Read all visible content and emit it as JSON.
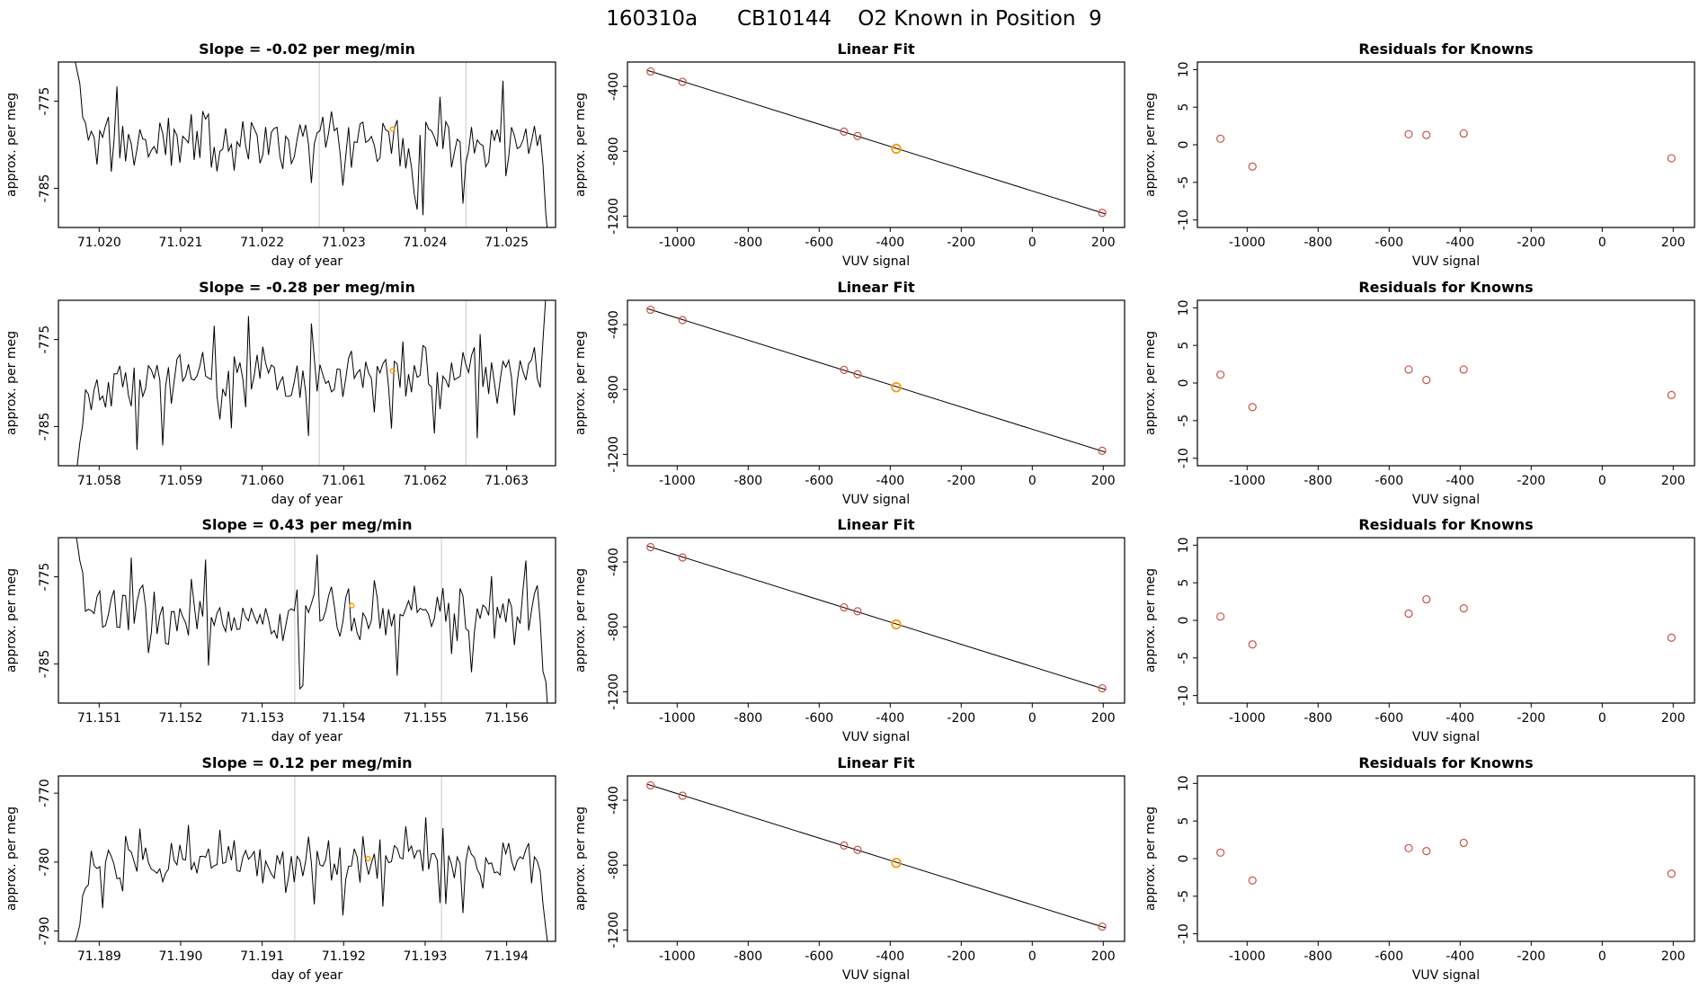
{
  "page_title": "160310a      CB10144    O2 Known in Position  9",
  "layout_hints": {
    "grid_rows": 4,
    "grid_cols": 3,
    "background": "#ffffff"
  },
  "colors": {
    "series_line": "#000000",
    "point_stroke": "#cc5149",
    "known_point_stroke": "#ff9900",
    "reference_line": "#c8c8c8",
    "axis": "#000000"
  },
  "chart_data": [
    {
      "panel": "row1-timeseries",
      "type": "line",
      "title": "Slope =  -0.02  per meg/min",
      "xlabel": "day of year",
      "ylabel": "approx. per meg",
      "xlim": [
        71.0195,
        71.0256
      ],
      "ylim": [
        -789.5,
        -770.5
      ],
      "xticks": [
        71.02,
        71.021,
        71.022,
        71.023,
        71.024,
        71.025
      ],
      "yticks": [
        -785,
        -775
      ],
      "xtick_decimals": 3,
      "ytick_decimals": 0,
      "ref_lines_x": [
        71.0227,
        71.0245
      ],
      "marker": {
        "x": 71.0236,
        "y": -778.2
      },
      "series_model": {
        "seed": 11,
        "n": 170,
        "mean": -779.5,
        "amp": 4,
        "enter": "top",
        "exit": "bottom"
      },
      "line_color": "#000000",
      "marker_color": "#ff9900",
      "ref_line_color": "#c8c8c8"
    },
    {
      "panel": "row1-linear-fit",
      "type": "scatter-line",
      "title": "Linear Fit",
      "xlabel": "VUV signal",
      "ylabel": "approx. per meg",
      "xlim": [
        -1140,
        260
      ],
      "ylim": [
        -1270,
        -250
      ],
      "xticks": [
        -1000,
        -800,
        -600,
        -400,
        -200,
        0,
        200
      ],
      "yticks": [
        -1200,
        -800,
        -400
      ],
      "xtick_decimals": 0,
      "ytick_decimals": 0,
      "fit_line": {
        "slope": -0.686,
        "intercept": -1045,
        "x_start": -1085,
        "x_end": 207
      },
      "points": [
        {
          "x": -1075,
          "y": -308
        },
        {
          "x": -985,
          "y": -372
        },
        {
          "x": -530,
          "y": -679
        },
        {
          "x": -492,
          "y": -706
        },
        {
          "x": 197,
          "y": -1180
        }
      ],
      "known_point": {
        "x": -383,
        "y": -785
      },
      "point_color": "#cc5149",
      "known_color": "#ff9900"
    },
    {
      "panel": "row1-residuals",
      "type": "scatter",
      "title": "Residuals for Knowns",
      "xlabel": "VUV signal",
      "ylabel": "approx. per meg",
      "xlim": [
        -1140,
        260
      ],
      "ylim": [
        -11,
        11
      ],
      "xticks": [
        -1000,
        -800,
        -600,
        -400,
        -200,
        0,
        200
      ],
      "yticks": [
        -10,
        -5,
        0,
        5,
        10
      ],
      "xtick_decimals": 0,
      "ytick_decimals": 0,
      "points": [
        {
          "x": -1075,
          "y": 0.8
        },
        {
          "x": -985,
          "y": -2.9
        },
        {
          "x": -545,
          "y": 1.4
        },
        {
          "x": -495,
          "y": 1.3
        },
        {
          "x": -390,
          "y": 1.5
        },
        {
          "x": 195,
          "y": -1.8
        }
      ],
      "point_color": "#cc5149"
    },
    {
      "panel": "row2-timeseries",
      "type": "line",
      "title": "Slope =  -0.28  per meg/min",
      "xlabel": "day of year",
      "ylabel": "approx. per meg",
      "xlim": [
        71.0575,
        71.0636
      ],
      "ylim": [
        -789.5,
        -770.5
      ],
      "xticks": [
        71.058,
        71.059,
        71.06,
        71.061,
        71.062,
        71.063
      ],
      "yticks": [
        -785,
        -775
      ],
      "xtick_decimals": 3,
      "ytick_decimals": 0,
      "ref_lines_x": [
        71.0607,
        71.0625
      ],
      "marker": {
        "x": 71.0616,
        "y": -778.6
      },
      "series_model": {
        "seed": 22,
        "n": 170,
        "mean": -779.3,
        "amp": 4,
        "enter": "bottom",
        "exit": "top"
      },
      "line_color": "#000000",
      "marker_color": "#ff9900",
      "ref_line_color": "#c8c8c8"
    },
    {
      "panel": "row2-linear-fit",
      "type": "scatter-line",
      "title": "Linear Fit",
      "xlabel": "VUV signal",
      "ylabel": "approx. per meg",
      "xlim": [
        -1140,
        260
      ],
      "ylim": [
        -1270,
        -250
      ],
      "xticks": [
        -1000,
        -800,
        -600,
        -400,
        -200,
        0,
        200
      ],
      "yticks": [
        -1200,
        -800,
        -400
      ],
      "xtick_decimals": 0,
      "ytick_decimals": 0,
      "fit_line": {
        "slope": -0.686,
        "intercept": -1045,
        "x_start": -1085,
        "x_end": 207
      },
      "points": [
        {
          "x": -1075,
          "y": -308
        },
        {
          "x": -985,
          "y": -372
        },
        {
          "x": -530,
          "y": -679
        },
        {
          "x": -492,
          "y": -706
        },
        {
          "x": 197,
          "y": -1178
        }
      ],
      "known_point": {
        "x": -383,
        "y": -786
      },
      "point_color": "#cc5149",
      "known_color": "#ff9900"
    },
    {
      "panel": "row2-residuals",
      "type": "scatter",
      "title": "Residuals for Knowns",
      "xlabel": "VUV signal",
      "ylabel": "approx. per meg",
      "xlim": [
        -1140,
        260
      ],
      "ylim": [
        -11,
        11
      ],
      "xticks": [
        -1000,
        -800,
        -600,
        -400,
        -200,
        0,
        200
      ],
      "yticks": [
        -10,
        -5,
        0,
        5,
        10
      ],
      "xtick_decimals": 0,
      "ytick_decimals": 0,
      "points": [
        {
          "x": -1075,
          "y": 1.1
        },
        {
          "x": -985,
          "y": -3.2
        },
        {
          "x": -545,
          "y": 1.8
        },
        {
          "x": -495,
          "y": 0.4
        },
        {
          "x": -390,
          "y": 1.8
        },
        {
          "x": 195,
          "y": -1.6
        }
      ],
      "point_color": "#cc5149"
    },
    {
      "panel": "row3-timeseries",
      "type": "line",
      "title": "Slope =  0.43  per meg/min",
      "xlabel": "day of year",
      "ylabel": "approx. per meg",
      "xlim": [
        71.1505,
        71.1566
      ],
      "ylim": [
        -789.5,
        -770.5
      ],
      "xticks": [
        71.151,
        71.152,
        71.153,
        71.154,
        71.155,
        71.156
      ],
      "yticks": [
        -785,
        -775
      ],
      "xtick_decimals": 3,
      "ytick_decimals": 0,
      "ref_lines_x": [
        71.1534,
        71.1552
      ],
      "marker": {
        "x": 71.1541,
        "y": -778.3
      },
      "series_model": {
        "seed": 33,
        "n": 170,
        "mean": -779.6,
        "amp": 4,
        "enter": "top",
        "exit": "bottom"
      },
      "line_color": "#000000",
      "marker_color": "#ff9900",
      "ref_line_color": "#c8c8c8"
    },
    {
      "panel": "row3-linear-fit",
      "type": "scatter-line",
      "title": "Linear Fit",
      "xlabel": "VUV signal",
      "ylabel": "approx. per meg",
      "xlim": [
        -1140,
        260
      ],
      "ylim": [
        -1270,
        -250
      ],
      "xticks": [
        -1000,
        -800,
        -600,
        -400,
        -200,
        0,
        200
      ],
      "yticks": [
        -1200,
        -800,
        -400
      ],
      "xtick_decimals": 0,
      "ytick_decimals": 0,
      "fit_line": {
        "slope": -0.686,
        "intercept": -1045,
        "x_start": -1085,
        "x_end": 207
      },
      "points": [
        {
          "x": -1075,
          "y": -308
        },
        {
          "x": -985,
          "y": -372
        },
        {
          "x": -530,
          "y": -680
        },
        {
          "x": -492,
          "y": -704
        },
        {
          "x": 197,
          "y": -1179
        }
      ],
      "known_point": {
        "x": -383,
        "y": -785
      },
      "point_color": "#cc5149",
      "known_color": "#ff9900"
    },
    {
      "panel": "row3-residuals",
      "type": "scatter",
      "title": "Residuals for Knowns",
      "xlabel": "VUV signal",
      "ylabel": "approx. per meg",
      "xlim": [
        -1140,
        260
      ],
      "ylim": [
        -11,
        11
      ],
      "xticks": [
        -1000,
        -800,
        -600,
        -400,
        -200,
        0,
        200
      ],
      "yticks": [
        -10,
        -5,
        0,
        5,
        10
      ],
      "xtick_decimals": 0,
      "ytick_decimals": 0,
      "points": [
        {
          "x": -1075,
          "y": 0.5
        },
        {
          "x": -985,
          "y": -3.2
        },
        {
          "x": -545,
          "y": 0.9
        },
        {
          "x": -495,
          "y": 2.8
        },
        {
          "x": -390,
          "y": 1.6
        },
        {
          "x": 195,
          "y": -2.3
        }
      ],
      "point_color": "#cc5149"
    },
    {
      "panel": "row4-timeseries",
      "type": "line",
      "title": "Slope =  0.12  per meg/min",
      "xlabel": "day of year",
      "ylabel": "approx. per meg",
      "xlim": [
        71.1885,
        71.1946
      ],
      "ylim": [
        -791.5,
        -767.5
      ],
      "xticks": [
        71.189,
        71.19,
        71.191,
        71.192,
        71.193,
        71.194
      ],
      "yticks": [
        -790,
        -780,
        -770
      ],
      "xtick_decimals": 3,
      "ytick_decimals": 0,
      "ref_lines_x": [
        71.1914,
        71.1932
      ],
      "marker": {
        "x": 71.1923,
        "y": -779.5
      },
      "series_model": {
        "seed": 44,
        "n": 170,
        "mean": -780,
        "amp": 4,
        "enter": "bottom",
        "exit": "bottom"
      },
      "line_color": "#000000",
      "marker_color": "#ff9900",
      "ref_line_color": "#c8c8c8"
    },
    {
      "panel": "row4-linear-fit",
      "type": "scatter-line",
      "title": "Linear Fit",
      "xlabel": "VUV signal",
      "ylabel": "approx. per meg",
      "xlim": [
        -1140,
        260
      ],
      "ylim": [
        -1270,
        -250
      ],
      "xticks": [
        -1000,
        -800,
        -600,
        -400,
        -200,
        0,
        200
      ],
      "yticks": [
        -1200,
        -800,
        -400
      ],
      "xtick_decimals": 0,
      "ytick_decimals": 0,
      "fit_line": {
        "slope": -0.686,
        "intercept": -1045,
        "x_start": -1085,
        "x_end": 207
      },
      "points": [
        {
          "x": -1075,
          "y": -308
        },
        {
          "x": -985,
          "y": -372
        },
        {
          "x": -530,
          "y": -679
        },
        {
          "x": -492,
          "y": -706
        },
        {
          "x": 197,
          "y": -1179
        }
      ],
      "known_point": {
        "x": -383,
        "y": -786
      },
      "point_color": "#cc5149",
      "known_color": "#ff9900"
    },
    {
      "panel": "row4-residuals",
      "type": "scatter",
      "title": "Residuals for Knowns",
      "xlabel": "VUV signal",
      "ylabel": "approx. per meg",
      "xlim": [
        -1140,
        260
      ],
      "ylim": [
        -11,
        11
      ],
      "xticks": [
        -1000,
        -800,
        -600,
        -400,
        -200,
        0,
        200
      ],
      "yticks": [
        -10,
        -5,
        0,
        5,
        10
      ],
      "xtick_decimals": 0,
      "ytick_decimals": 0,
      "points": [
        {
          "x": -1075,
          "y": 0.8
        },
        {
          "x": -985,
          "y": -2.9
        },
        {
          "x": -545,
          "y": 1.4
        },
        {
          "x": -495,
          "y": 1.0
        },
        {
          "x": -390,
          "y": 2.1
        },
        {
          "x": 195,
          "y": -2.0
        }
      ],
      "point_color": "#cc5149"
    }
  ]
}
